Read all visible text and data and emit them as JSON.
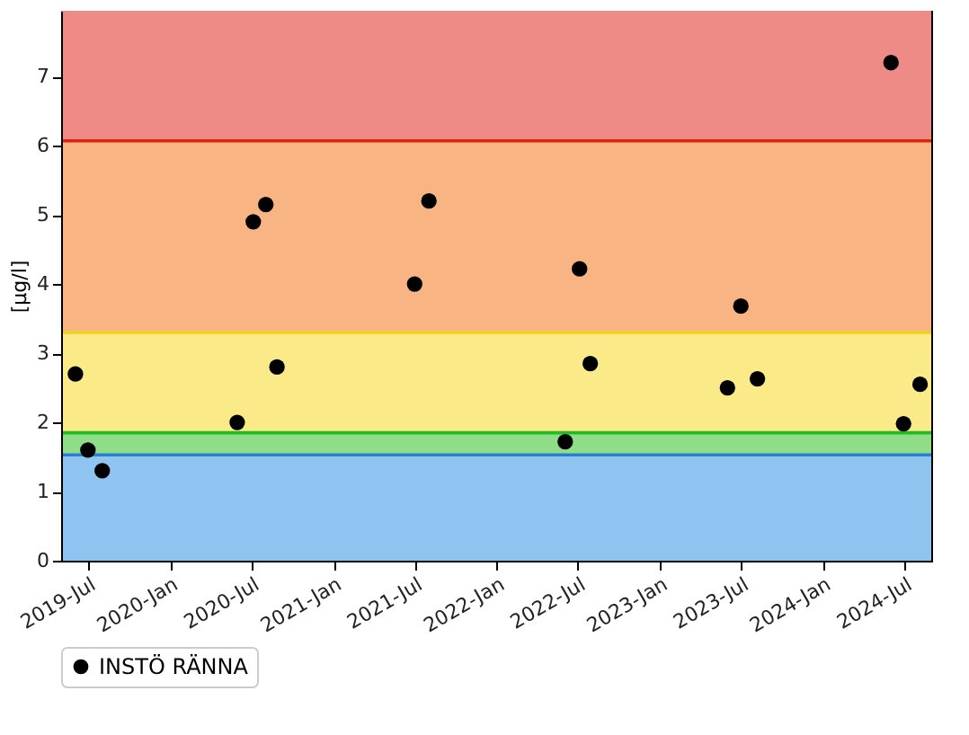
{
  "chart_data": {
    "type": "scatter",
    "ylabel": "[µg/l]",
    "x": [
      "2019-06-03",
      "2019-07-01",
      "2019-08-02",
      "2020-05-30",
      "2020-07-05",
      "2020-08-02",
      "2020-08-27",
      "2021-07-01",
      "2021-08-02",
      "2022-06-03",
      "2022-07-05",
      "2022-07-29",
      "2023-06-01",
      "2023-07-01",
      "2023-08-07",
      "2024-06-01",
      "2024-06-29",
      "2024-08-05"
    ],
    "series": [
      {
        "name": "INSTÖ RÄNNA",
        "color": "#000000",
        "values": [
          2.7,
          1.6,
          1.3,
          2.0,
          4.9,
          5.15,
          2.8,
          4.0,
          5.2,
          1.72,
          4.22,
          2.85,
          2.5,
          3.68,
          2.63,
          7.2,
          1.98,
          2.55
        ]
      }
    ],
    "xlim": [
      "2019-05-02",
      "2024-08-30"
    ],
    "xticks": [
      {
        "value": "2019-07",
        "label": "2019-Jul"
      },
      {
        "value": "2020-01",
        "label": "2020-Jan"
      },
      {
        "value": "2020-07",
        "label": "2020-Jul"
      },
      {
        "value": "2021-01",
        "label": "2021-Jan"
      },
      {
        "value": "2021-07",
        "label": "2021-Jul"
      },
      {
        "value": "2022-01",
        "label": "2022-Jan"
      },
      {
        "value": "2022-07",
        "label": "2022-Jul"
      },
      {
        "value": "2023-01",
        "label": "2023-Jan"
      },
      {
        "value": "2023-07",
        "label": "2023-Jul"
      },
      {
        "value": "2024-01",
        "label": "2024-Jan"
      },
      {
        "value": "2024-07",
        "label": "2024-Jul"
      }
    ],
    "ylim": [
      0,
      7.95
    ],
    "yticks": [
      0,
      1,
      2,
      3,
      4,
      5,
      6,
      7
    ],
    "bands": [
      {
        "axis": "y",
        "from": 0,
        "to": 1.53,
        "color": "#90c4f0"
      },
      {
        "axis": "y",
        "from": 1.53,
        "to": 1.85,
        "color": "#90dd88"
      },
      {
        "axis": "y",
        "from": 1.85,
        "to": 3.3,
        "color": "#faeb88"
      },
      {
        "axis": "y",
        "from": 3.3,
        "to": 6.07,
        "color": "#f8b483"
      },
      {
        "axis": "y",
        "from": 6.07,
        "to": 7.95,
        "color": "#ef8b87"
      }
    ],
    "ref_lines": [
      {
        "axis": "y",
        "value": 1.53,
        "color": "#2a7fd0"
      },
      {
        "axis": "y",
        "value": 1.85,
        "color": "#22bb22"
      },
      {
        "axis": "y",
        "value": 3.3,
        "color": "#f0d020"
      },
      {
        "axis": "y",
        "value": 6.07,
        "color": "#e02010"
      }
    ],
    "grid": false,
    "legend": "bottom",
    "marker": "circle"
  }
}
